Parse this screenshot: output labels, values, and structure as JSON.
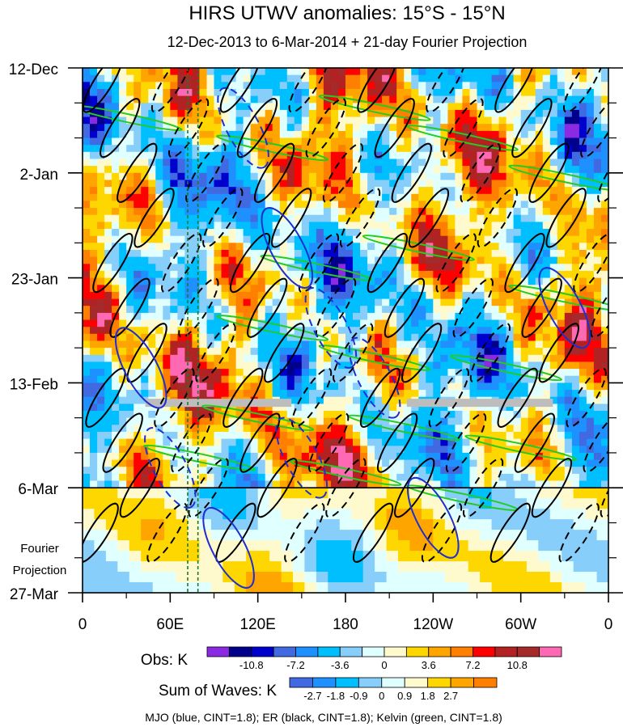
{
  "chart_data": {
    "type": "heatmap",
    "title": "HIRS UTWV anomalies: 15°S - 15°N",
    "subtitle": "12-Dec-2013 to 6-Mar-2014 + 21-day Fourier Projection",
    "x_axis": {
      "ticks": [
        {
          "lon": 0,
          "label": "0"
        },
        {
          "lon": 60,
          "label": "60E"
        },
        {
          "lon": 120,
          "label": "120E"
        },
        {
          "lon": 180,
          "label": "180"
        },
        {
          "lon": 240,
          "label": "120W"
        },
        {
          "lon": 300,
          "label": "60W"
        },
        {
          "lon": 360,
          "label": "0"
        }
      ],
      "range": [
        0,
        360
      ]
    },
    "y_axis": {
      "ticks": [
        {
          "day": 0,
          "label": "12-Dec"
        },
        {
          "day": 21,
          "label": "2-Jan"
        },
        {
          "day": 42,
          "label": "23-Jan"
        },
        {
          "day": 63,
          "label": "13-Feb"
        },
        {
          "day": 84,
          "label": "6-Mar"
        },
        {
          "day": 105,
          "label": "27-Mar"
        }
      ],
      "range_days": [
        0,
        105
      ],
      "observation_end_day": 84
    },
    "projection_label": [
      "Fourier",
      "Projection"
    ],
    "obs_colorbar": {
      "label": "Obs: K",
      "colors": [
        "#8a2be2",
        "#00008b",
        "#0000cd",
        "#4169e1",
        "#1e90ff",
        "#00bfff",
        "#87cefa",
        "#e0ffff",
        "#fffacd",
        "#ffd700",
        "#ffa500",
        "#ff7f00",
        "#ff0000",
        "#b22222",
        "#a52a2a",
        "#ff69b4"
      ],
      "labels": [
        "-10.8",
        "-7.2",
        "-3.6",
        "0",
        "3.6",
        "7.2",
        "10.8"
      ]
    },
    "waves_colorbar": {
      "label": "Sum of Waves: K",
      "colors": [
        "#4169e1",
        "#1e90ff",
        "#00bfff",
        "#87cefa",
        "#e0ffff",
        "#fffacd",
        "#ffd700",
        "#ffa500",
        "#ff7f00"
      ],
      "labels": [
        "-2.7",
        "-1.8",
        "-0.9",
        "0",
        "0.9",
        "1.8",
        "2.7"
      ]
    },
    "contour_legend": "MJO (blue, CINT=1.8); ER (black, CINT=1.8); Kelvin (green, CINT=1.8)",
    "mjo_reference_lons": [
      72,
      79
    ],
    "missing_data_bands": [
      {
        "lon_start": 43,
        "lon_end": 143,
        "day": 67
      },
      {
        "lon_start": 222,
        "lon_end": 322,
        "day": 67
      }
    ]
  }
}
